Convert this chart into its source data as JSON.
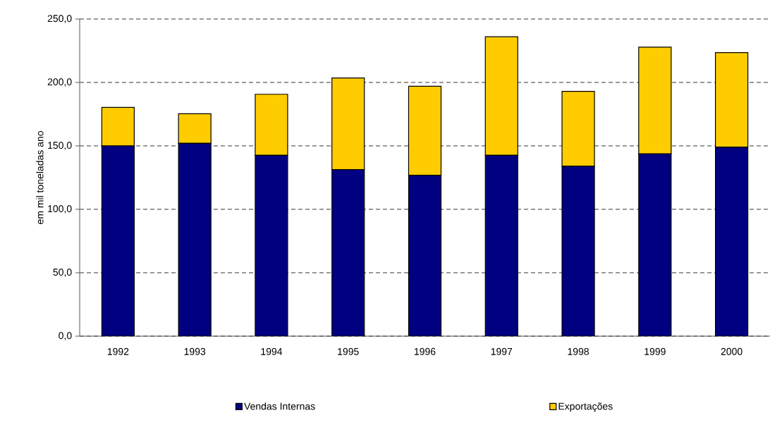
{
  "chart_data": {
    "type": "bar",
    "stacked": true,
    "ylabel": "em mil toneladas ano",
    "categories": [
      "1992",
      "1993",
      "1994",
      "1995",
      "1996",
      "1997",
      "1998",
      "1999",
      "2000"
    ],
    "series": [
      {
        "name": "Vendas Internas",
        "color": "#000080",
        "values": [
          150,
          152,
          142.6,
          131.3,
          126.7,
          142.6,
          134,
          143.7,
          149
        ]
      },
      {
        "name": "Exportações",
        "color": "#ffcc00",
        "values": [
          30.4,
          23.4,
          48.1,
          72.2,
          70.3,
          93.4,
          59,
          84.1,
          74.5
        ]
      }
    ],
    "ylim": [
      0,
      250
    ],
    "yticks": [
      {
        "value": 0,
        "label": "0,0"
      },
      {
        "value": 50,
        "label": "50,0"
      },
      {
        "value": 100,
        "label": "100,0"
      },
      {
        "value": 150,
        "label": "150,0"
      },
      {
        "value": 200,
        "label": "200,0"
      },
      {
        "value": 250,
        "label": "250,0"
      }
    ],
    "grid": "y",
    "legend": "bottom"
  }
}
